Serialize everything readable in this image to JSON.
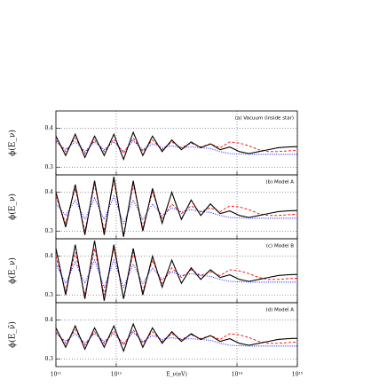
{
  "chart_data": {
    "type": "line",
    "xlog": true,
    "grid": true,
    "xlabel": "E_ν(eV)",
    "xlim": [
      100000000000.0,
      1000000000000000.0
    ],
    "xticks": [
      {
        "value": 100000000000.0,
        "label": "10¹¹"
      },
      {
        "value": 1000000000000.0,
        "label": "10¹²"
      },
      {
        "value": 100000000000000.0,
        "label": "10¹⁴"
      },
      {
        "value": 1000000000000000.0,
        "label": "10¹⁵"
      }
    ],
    "ylim": [
      0.28,
      0.445
    ],
    "yticks": [
      0.3,
      0.4
    ],
    "x": [
      100000000000.0,
      145000000000.0,
      209000000000.0,
      302000000000.0,
      437000000000.0,
      631000000000.0,
      912000000000.0,
      1320000000000.0,
      1910000000000.0,
      2750000000000.0,
      3980000000000.0,
      5750000000000.0,
      8320000000000.0,
      12000000000000.0,
      17400000000000.0,
      25100000000000.0,
      36300000000000.0,
      52500000000000.0,
      75900000000000.0,
      110000000000000.0,
      158000000000000.0,
      229000000000000.0,
      331000000000000.0,
      479000000000000.0,
      692000000000000.0,
      1000000000000000.0
    ],
    "panels": [
      {
        "label": "(a) Vacuum (inside star)",
        "ylabel": "ϕ(E_ν)",
        "series": [
          {
            "color": "#ff0000",
            "style": "dashed",
            "values": [
              0.37,
              0.34,
              0.375,
              0.335,
              0.37,
              0.34,
              0.372,
              0.335,
              0.375,
              0.34,
              0.37,
              0.345,
              0.365,
              0.35,
              0.362,
              0.352,
              0.36,
              0.35,
              0.365,
              0.362,
              0.355,
              0.345,
              0.34,
              0.34,
              0.342,
              0.343
            ]
          },
          {
            "color": "#0000ff",
            "style": "dotted",
            "values": [
              0.365,
              0.345,
              0.365,
              0.34,
              0.365,
              0.345,
              0.365,
              0.34,
              0.368,
              0.345,
              0.36,
              0.35,
              0.355,
              0.35,
              0.352,
              0.35,
              0.348,
              0.34,
              0.335,
              0.334,
              0.333,
              0.333,
              0.333,
              0.333,
              0.333,
              0.333
            ]
          },
          {
            "color": "#000000",
            "style": "solid",
            "values": [
              0.38,
              0.33,
              0.385,
              0.325,
              0.38,
              0.33,
              0.385,
              0.32,
              0.39,
              0.33,
              0.38,
              0.34,
              0.37,
              0.345,
              0.365,
              0.35,
              0.36,
              0.345,
              0.352,
              0.34,
              0.335,
              0.34,
              0.345,
              0.35,
              0.352,
              0.353
            ]
          }
        ]
      },
      {
        "label": "(b) Model A",
        "ylabel": "ϕ(E_ν)",
        "series": [
          {
            "color": "#ff0000",
            "style": "dashed",
            "values": [
              0.39,
              0.32,
              0.41,
              0.3,
              0.42,
              0.3,
              0.43,
              0.29,
              0.42,
              0.31,
              0.4,
              0.33,
              0.37,
              0.345,
              0.365,
              0.35,
              0.36,
              0.35,
              0.365,
              0.362,
              0.355,
              0.345,
              0.34,
              0.34,
              0.342,
              0.343
            ]
          },
          {
            "color": "#0000ff",
            "style": "dotted",
            "values": [
              0.37,
              0.34,
              0.38,
              0.33,
              0.385,
              0.33,
              0.39,
              0.32,
              0.38,
              0.33,
              0.37,
              0.34,
              0.36,
              0.35,
              0.355,
              0.35,
              0.348,
              0.34,
              0.335,
              0.334,
              0.333,
              0.333,
              0.333,
              0.333,
              0.333,
              0.333
            ]
          },
          {
            "color": "#000000",
            "style": "solid",
            "values": [
              0.4,
              0.31,
              0.42,
              0.29,
              0.43,
              0.29,
              0.44,
              0.285,
              0.43,
              0.3,
              0.41,
              0.32,
              0.4,
              0.33,
              0.38,
              0.34,
              0.37,
              0.345,
              0.352,
              0.34,
              0.335,
              0.34,
              0.345,
              0.35,
              0.352,
              0.353
            ]
          }
        ]
      },
      {
        "label": "(c) Model B",
        "ylabel": "ϕ(E_ν)",
        "series": [
          {
            "color": "#ff0000",
            "style": "dashed",
            "values": [
              0.4,
              0.31,
              0.41,
              0.3,
              0.42,
              0.3,
              0.42,
              0.29,
              0.41,
              0.31,
              0.39,
              0.33,
              0.37,
              0.345,
              0.365,
              0.35,
              0.36,
              0.35,
              0.365,
              0.362,
              0.355,
              0.345,
              0.34,
              0.34,
              0.342,
              0.343
            ]
          },
          {
            "color": "#0000ff",
            "style": "dotted",
            "values": [
              0.38,
              0.33,
              0.385,
              0.33,
              0.39,
              0.32,
              0.39,
              0.32,
              0.38,
              0.33,
              0.37,
              0.34,
              0.36,
              0.35,
              0.355,
              0.35,
              0.348,
              0.34,
              0.335,
              0.334,
              0.333,
              0.333,
              0.333,
              0.333,
              0.333,
              0.333
            ]
          },
          {
            "color": "#000000",
            "style": "solid",
            "values": [
              0.42,
              0.3,
              0.43,
              0.29,
              0.44,
              0.285,
              0.43,
              0.29,
              0.42,
              0.3,
              0.4,
              0.32,
              0.39,
              0.33,
              0.37,
              0.34,
              0.365,
              0.345,
              0.352,
              0.34,
              0.335,
              0.34,
              0.345,
              0.35,
              0.352,
              0.353
            ]
          }
        ]
      },
      {
        "label": "(d) Model A",
        "ylabel": "ϕ(E_ν̄)",
        "series": [
          {
            "color": "#ff0000",
            "style": "dashed",
            "values": [
              0.37,
              0.34,
              0.375,
              0.335,
              0.37,
              0.34,
              0.372,
              0.335,
              0.375,
              0.34,
              0.37,
              0.345,
              0.365,
              0.35,
              0.362,
              0.352,
              0.36,
              0.35,
              0.365,
              0.362,
              0.355,
              0.345,
              0.34,
              0.34,
              0.342,
              0.343
            ]
          },
          {
            "color": "#0000ff",
            "style": "dotted",
            "values": [
              0.365,
              0.345,
              0.365,
              0.34,
              0.365,
              0.345,
              0.365,
              0.34,
              0.368,
              0.345,
              0.36,
              0.35,
              0.355,
              0.35,
              0.352,
              0.35,
              0.348,
              0.34,
              0.335,
              0.334,
              0.333,
              0.333,
              0.333,
              0.333,
              0.333,
              0.333
            ]
          },
          {
            "color": "#000000",
            "style": "solid",
            "values": [
              0.38,
              0.33,
              0.385,
              0.325,
              0.38,
              0.33,
              0.385,
              0.32,
              0.39,
              0.33,
              0.38,
              0.34,
              0.37,
              0.345,
              0.365,
              0.35,
              0.36,
              0.345,
              0.352,
              0.34,
              0.335,
              0.34,
              0.345,
              0.35,
              0.352,
              0.353
            ]
          }
        ]
      }
    ]
  }
}
